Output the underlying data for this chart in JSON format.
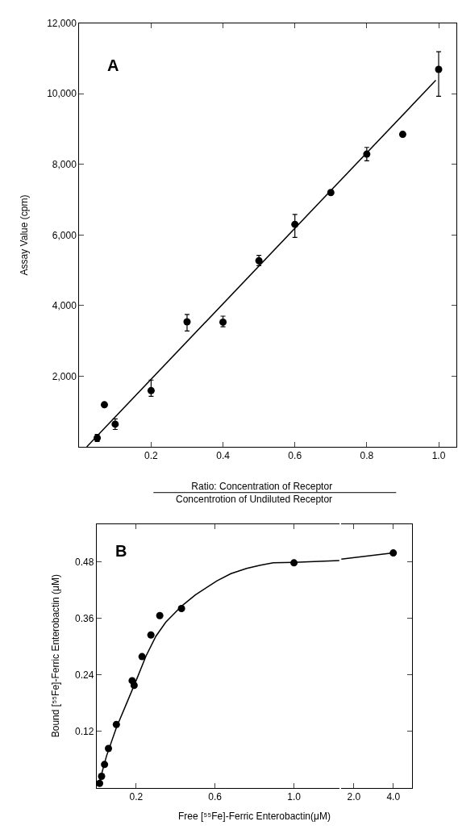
{
  "chart_data": [
    {
      "type": "scatter",
      "annotations": [
        "A"
      ],
      "xlabel": "Ratio: Concentration of Receptor\nConcentrotion of Undiluted Receptor",
      "ylabel": "Assay Value (cpm)",
      "xlim": [
        0,
        1.05
      ],
      "ylim": [
        0,
        12000
      ],
      "xticks": [
        0.2,
        0.4,
        0.6,
        0.8,
        {
          "value": 1,
          "label": "1.0"
        }
      ],
      "yticks": [
        {
          "value": 2000,
          "label": "2,000"
        },
        {
          "value": 4000,
          "label": "4,000"
        },
        {
          "value": 6000,
          "label": "6,000"
        },
        {
          "value": 8000,
          "label": "8,000"
        },
        {
          "value": 10000,
          "label": "10,000"
        },
        {
          "value": 12000,
          "label": "12,000"
        }
      ],
      "series": [
        {
          "color": "#000000",
          "x": [
            0.05,
            0.07,
            0.1,
            0.2,
            0.3,
            0.4,
            0.5,
            0.6,
            0.7,
            0.8,
            0.9,
            1.0
          ],
          "values": [
            250,
            1190,
            640,
            1590,
            3540,
            3530,
            5270,
            6300,
            7200,
            8290,
            8850,
            10690
          ],
          "errors": [
            [
              150,
              350
            ],
            null,
            [
              490,
              790
            ],
            [
              1430,
              1890
            ],
            [
              3280,
              3750
            ],
            [
              3400,
              3700
            ],
            [
              5130,
              5420
            ],
            [
              5930,
              6580
            ],
            null,
            [
              8100,
              8480
            ],
            null,
            [
              9930,
              11190
            ]
          ]
        },
        {
          "type": "line",
          "color": "#000000",
          "x": [
            0.021,
            0.992
          ],
          "values": [
            0,
            10380
          ]
        }
      ]
    },
    {
      "type": "scatter",
      "annotations": [
        "B"
      ],
      "xlabel": "Free [⁵⁵Fe]-Ferric Enterobactin(μM)",
      "ylabel": "Bound [⁵⁵Fe]-Ferric Enterobactin (μM)",
      "xlim": [
        0,
        1.23
      ],
      "ylim": [
        0,
        0.56
      ],
      "xticks": [
        0.2,
        0.6,
        {
          "value": 1,
          "label": "1.0"
        }
      ],
      "yticks": [
        0.12,
        0.24,
        0.36,
        0.48
      ],
      "series": [
        {
          "color": "#000000",
          "marker": "circle",
          "x": [
            0.015,
            0.025,
            0.04,
            0.06,
            0.1,
            0.18,
            0.19,
            0.23,
            0.275,
            0.32,
            0.43,
            1.0
          ],
          "values": [
            0.01,
            0.025,
            0.05,
            0.084,
            0.135,
            0.228,
            0.218,
            0.279,
            0.325,
            0.366,
            0.381,
            0.478
          ]
        },
        {
          "type": "line",
          "color": "#000000",
          "x": [
            0.01,
            0.05,
            0.1,
            0.15,
            0.2,
            0.25,
            0.3,
            0.35,
            0.43,
            0.5,
            0.61,
            0.68,
            0.76,
            0.83,
            0.895,
            1.0,
            1.23
          ],
          "values": [
            0.007,
            0.068,
            0.128,
            0.178,
            0.228,
            0.28,
            0.322,
            0.352,
            0.386,
            0.41,
            0.44,
            0.455,
            0.466,
            0.473,
            0.478,
            0.479,
            0.483
          ]
        }
      ]
    },
    {
      "type": "scatter",
      "xlim": [
        1.36,
        4.96
      ],
      "ylim": [
        0,
        0.56
      ],
      "xticks": [
        {
          "value": 2,
          "label": "2.0"
        },
        {
          "value": 4,
          "label": "4.0"
        }
      ],
      "yticks": [
        0.12,
        0.24,
        0.36,
        0.48
      ],
      "tick_labels": "x",
      "series": [
        {
          "color": "#000000",
          "marker": "circle",
          "x": [
            4.0
          ],
          "values": [
            0.499
          ]
        },
        {
          "type": "line",
          "color": "#000000",
          "x": [
            1.36,
            4.0
          ],
          "values": [
            0.486,
            0.499
          ]
        }
      ]
    }
  ]
}
